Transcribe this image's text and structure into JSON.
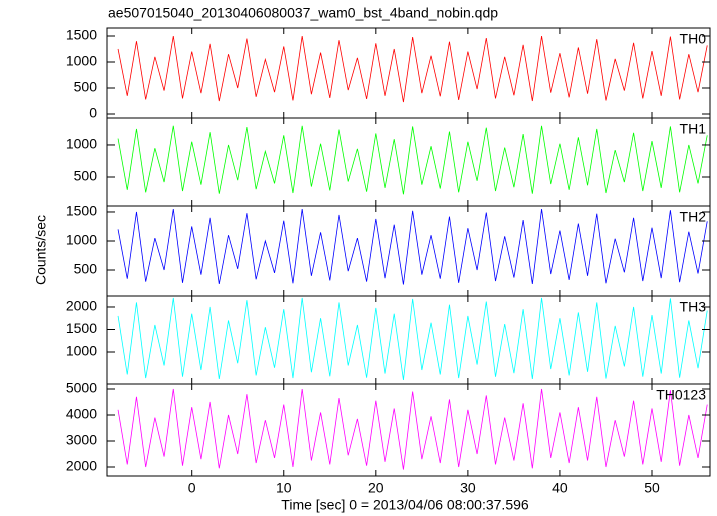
{
  "chart_data": {
    "type": "line",
    "title": "ae507015040_20130406080037_wam0_bst_4band_nobin.qdp",
    "xlabel": "Time [sec] 0 = 2013/04/06 08:00:37.596",
    "ylabel": "Counts/sec",
    "xlim": [
      -9.2,
      56.3
    ],
    "xticks": [
      0,
      10,
      20,
      30,
      40,
      50
    ],
    "x": [
      -8,
      -7,
      -6,
      -5,
      -4,
      -3,
      -2,
      -1,
      0,
      1,
      2,
      3,
      4,
      5,
      6,
      7,
      8,
      9,
      10,
      11,
      12,
      13,
      14,
      15,
      16,
      17,
      18,
      19,
      20,
      21,
      22,
      23,
      24,
      25,
      26,
      27,
      28,
      29,
      30,
      31,
      32,
      33,
      34,
      35,
      36,
      37,
      38,
      39,
      40,
      41,
      42,
      43,
      44,
      45,
      46,
      47,
      48,
      49,
      50,
      51,
      52,
      53,
      54,
      55,
      56
    ],
    "panels": [
      {
        "name": "TH0",
        "color": "#ff0000",
        "ylim": [
          -77,
          1654
        ],
        "yticks": [
          0,
          500,
          1000,
          1500
        ],
        "values": [
          1250,
          350,
          1400,
          280,
          1100,
          450,
          1500,
          300,
          1200,
          400,
          1350,
          250,
          1150,
          500,
          1450,
          330,
          1050,
          420,
          1300,
          260,
          1500,
          380,
          1180,
          310,
          1420,
          460,
          1080,
          290,
          1360,
          350,
          1250,
          230,
          1480,
          400,
          1120,
          340,
          1390,
          270,
          1200,
          480,
          1460,
          300,
          1100,
          360,
          1330,
          250,
          1500,
          410,
          1170,
          320,
          1280,
          390,
          1440,
          260,
          1060,
          450,
          1370,
          300,
          1210,
          350,
          1490,
          280,
          1150,
          420,
          1320
        ]
      },
      {
        "name": "TH1",
        "color": "#00ff00",
        "ylim": [
          47,
          1421
        ],
        "yticks": [
          500,
          1000
        ],
        "values": [
          1100,
          300,
          1250,
          260,
          950,
          420,
          1300,
          280,
          1050,
          380,
          1200,
          240,
          1000,
          450,
          1280,
          310,
          900,
          400,
          1150,
          250,
          1300,
          350,
          1020,
          290,
          1240,
          430,
          940,
          270,
          1180,
          330,
          1090,
          230,
          1290,
          380,
          980,
          320,
          1210,
          260,
          1050,
          440,
          1270,
          280,
          960,
          340,
          1170,
          240,
          1300,
          390,
          1020,
          300,
          1120,
          370,
          1250,
          250,
          920,
          420,
          1190,
          280,
          1060,
          330,
          1290,
          260,
          1000,
          400,
          1150
        ]
      },
      {
        "name": "TH2",
        "color": "#0000ff",
        "ylim": [
          52,
          1603
        ],
        "yticks": [
          500,
          1000,
          1500
        ],
        "values": [
          1200,
          350,
          1500,
          300,
          1050,
          500,
          1550,
          280,
          1250,
          420,
          1400,
          260,
          1100,
          520,
          1480,
          340,
          1000,
          450,
          1350,
          270,
          1550,
          400,
          1150,
          320,
          1450,
          480,
          1050,
          300,
          1380,
          360,
          1280,
          250,
          1520,
          420,
          1100,
          350,
          1420,
          280,
          1220,
          500,
          1490,
          310,
          1080,
          370,
          1360,
          260,
          1550,
          430,
          1180,
          330,
          1300,
          400,
          1470,
          270,
          1040,
          460,
          1400,
          310,
          1230,
          360,
          1530,
          290,
          1160,
          440,
          1340
        ]
      },
      {
        "name": "TH3",
        "color": "#00ffff",
        "ylim": [
          289,
          2244
        ],
        "yticks": [
          1000,
          1500,
          2000
        ],
        "values": [
          1800,
          500,
          2100,
          420,
          1600,
          700,
          2200,
          450,
          1850,
          600,
          2000,
          400,
          1700,
          750,
          2150,
          480,
          1550,
          650,
          1950,
          420,
          2200,
          550,
          1750,
          460,
          2100,
          700,
          1600,
          430,
          1980,
          520,
          1850,
          380,
          2180,
          600,
          1650,
          500,
          2050,
          420,
          1800,
          720,
          2120,
          450,
          1620,
          530,
          1950,
          400,
          2200,
          620,
          1750,
          480,
          1880,
          560,
          2100,
          410,
          1580,
          680,
          2000,
          450,
          1820,
          520,
          2190,
          430,
          1700,
          640,
          1920
        ]
      },
      {
        "name": "TH0123",
        "color": "#ff00ff",
        "ylim": [
          1654,
          5192
        ],
        "yticks": [
          2000,
          3000,
          4000,
          5000
        ],
        "values": [
          4200,
          2100,
          4700,
          2000,
          3900,
          2400,
          5000,
          2050,
          4300,
          2300,
          4500,
          1950,
          4000,
          2500,
          4800,
          2150,
          3800,
          2350,
          4400,
          2000,
          5000,
          2250,
          4100,
          2100,
          4650,
          2450,
          3850,
          2050,
          4550,
          2200,
          4250,
          1900,
          4900,
          2300,
          3950,
          2150,
          4600,
          2000,
          4200,
          2500,
          4750,
          2100,
          3900,
          2250,
          4450,
          1950,
          5000,
          2350,
          4100,
          2150,
          4300,
          2250,
          4700,
          2000,
          3800,
          2400,
          4550,
          2100,
          4250,
          2200,
          4950,
          2050,
          4000,
          2350,
          4400
        ]
      }
    ]
  }
}
